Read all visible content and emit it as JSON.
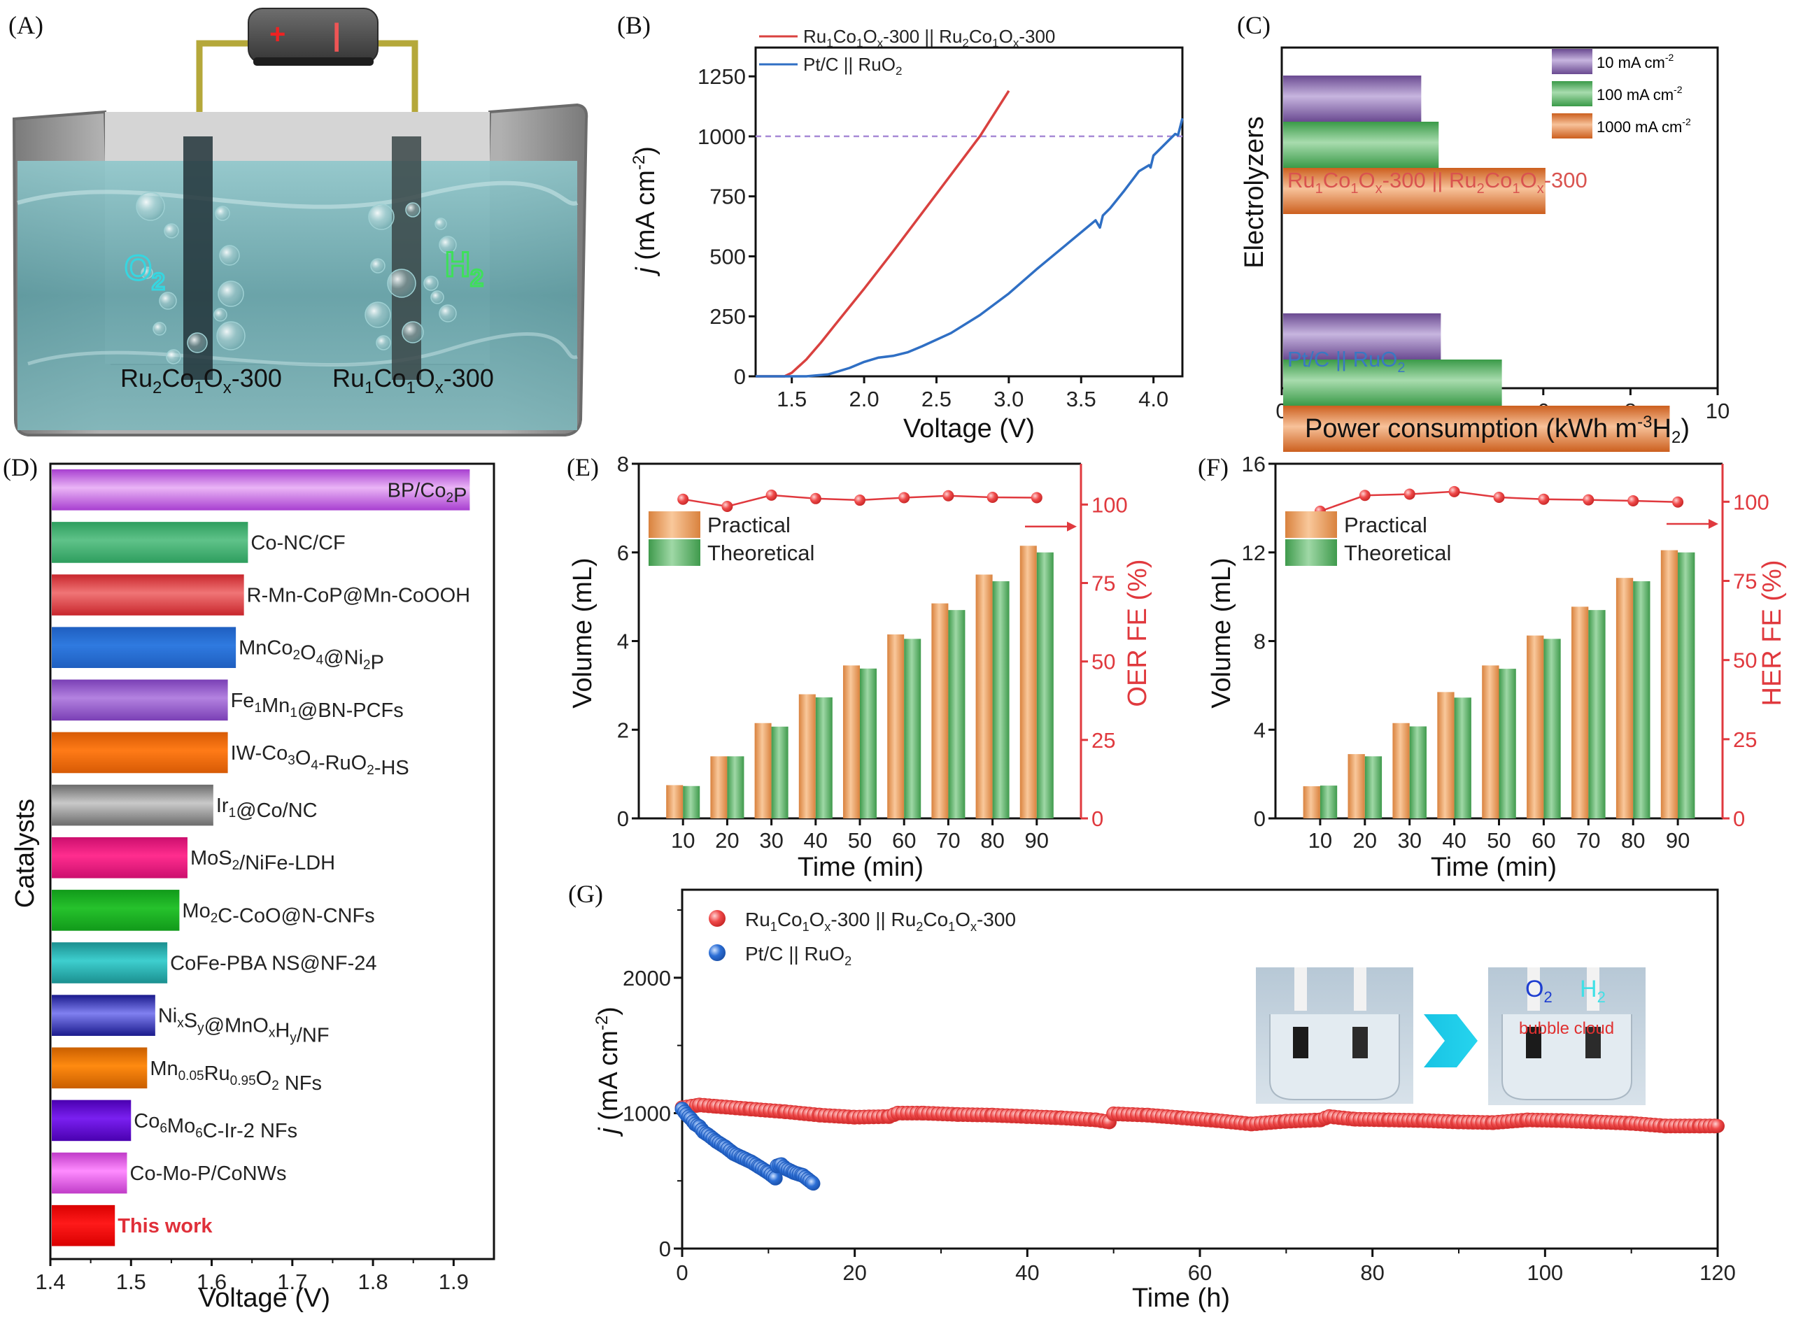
{
  "figure": {
    "panel_labels": [
      "(A)",
      "(B)",
      "(C)",
      "(D)",
      "(E)",
      "(F)",
      "(G)"
    ]
  },
  "panel_a": {
    "anode_label": {
      "base": "Ru",
      "s1": "2",
      "m1": "Co",
      "s2": "1",
      "m2": "O",
      "s3": "x",
      "tail": "-300"
    },
    "cathode_label": {
      "base": "Ru",
      "s1": "1",
      "m1": "Co",
      "s2": "1",
      "m2": "O",
      "s3": "x",
      "tail": "-300"
    },
    "gas_left": {
      "main": "O",
      "sub": "2"
    },
    "gas_right": {
      "main": "H",
      "sub": "2"
    },
    "battery_plus": "+",
    "battery_minus": "|",
    "colors": {
      "water": "#5fa7ad",
      "o2": "#36d6e0",
      "h2": "#3ee05a",
      "wire": "#b5a83a",
      "battery": "#4a4a4a"
    }
  },
  "chart_data": [
    {
      "id": "B",
      "type": "line",
      "xlabel": "Voltage (V)",
      "ylabel": "j (mA cm-2)",
      "xlim": [
        1.25,
        4.2
      ],
      "ylim": [
        0,
        1370
      ],
      "xticks": [
        1.5,
        2.0,
        2.5,
        3.0,
        3.5,
        4.0
      ],
      "xtick_labels": [
        "1.5",
        "2.0",
        "2.5",
        "3.0",
        "3.5",
        "4.0"
      ],
      "yticks": [
        0,
        250,
        500,
        750,
        1000,
        1250
      ],
      "ytick_labels": [
        "0",
        "250",
        "500",
        "750",
        "1000",
        "1250"
      ],
      "reference_line": {
        "y": 1000,
        "style": "dashed",
        "color": "#a78bd6"
      },
      "legend_position": "top-left",
      "series": [
        {
          "name": "Ru1Co1Ox-300 || Ru2Co1Ox-300",
          "legend": {
            "a": "Ru",
            "a1": "1",
            "b": "Co",
            "b1": "1",
            "c": "O",
            "c1": "x",
            "d": "-300 || Ru",
            "d1": "2",
            "e": "Co",
            "e1": "1",
            "f": "O",
            "f1": "x",
            "g": "-300"
          },
          "color": "#d9413f",
          "x": [
            1.25,
            1.45,
            1.5,
            1.6,
            1.7,
            1.8,
            1.9,
            2.0,
            2.2,
            2.4,
            2.6,
            2.8,
            3.0
          ],
          "y": [
            0,
            0,
            15,
            70,
            140,
            215,
            290,
            365,
            520,
            680,
            840,
            1000,
            1190
          ]
        },
        {
          "name": "Pt/C || RuO2",
          "legend": {
            "a": "Pt/C || RuO",
            "a1": "2"
          },
          "color": "#2f6fc4",
          "x": [
            1.25,
            1.6,
            1.75,
            1.9,
            2.0,
            2.1,
            2.2,
            2.3,
            2.4,
            2.6,
            2.8,
            3.0,
            3.2,
            3.4,
            3.6,
            3.63,
            3.65,
            3.7,
            3.8,
            3.9,
            3.97,
            3.98,
            4.0,
            4.1,
            4.15,
            4.17,
            4.2
          ],
          "y": [
            0,
            0,
            8,
            35,
            60,
            78,
            85,
            100,
            125,
            180,
            255,
            345,
            450,
            550,
            650,
            620,
            670,
            700,
            775,
            855,
            880,
            870,
            920,
            980,
            1010,
            1005,
            1075
          ]
        }
      ]
    },
    {
      "id": "C",
      "type": "bar",
      "orientation": "horizontal",
      "xlabel": "Power consumption (kWh m-3H2)",
      "xlabel_parts": {
        "a": "Power consumption (kWh m",
        "sup": "-3",
        "b": "H",
        "sub": "2",
        "c": ")"
      },
      "ylabel": "Electrolyzers",
      "xlim": [
        0,
        10
      ],
      "xticks": [
        0,
        2,
        4,
        6,
        8,
        10
      ],
      "xtick_labels": [
        "0",
        "2",
        "4",
        "6",
        "8",
        "10"
      ],
      "legend_position": "top-right",
      "categories": [
        "Ru1Co1Ox-300 || Ru2Co1Ox-300",
        "Pt/C || RuO2"
      ],
      "category_labels": [
        {
          "a": "Ru",
          "a1": "1",
          "b": "Co",
          "b1": "1",
          "c": "O",
          "c1": "x",
          "d": "-300 || Ru",
          "d1": "2",
          "e": "Co",
          "e1": "1",
          "f": "O",
          "f1": "x",
          "g": "-300",
          "color": "#d9534f"
        },
        {
          "a": "Pt/C || RuO",
          "a1": "2",
          "color": "#3a78c2"
        }
      ],
      "series": [
        {
          "name": "10 mA cm-2",
          "legend": {
            "a": "10 mA cm",
            "sup": "-2"
          },
          "color": "#6a4a91",
          "light": "#c7b5df",
          "values": [
            3.2,
            3.65
          ]
        },
        {
          "name": "100 mA cm-2",
          "legend": {
            "a": "100 mA cm",
            "sup": "-2"
          },
          "color": "#3a9a48",
          "light": "#a8dcae",
          "values": [
            3.6,
            5.05
          ]
        },
        {
          "name": "1000 mA cm-2",
          "legend": {
            "a": "1000 mA cm",
            "sup": "-2"
          },
          "color": "#cc5f1e",
          "light": "#f7c29a",
          "values": [
            6.05,
            8.9
          ]
        }
      ]
    },
    {
      "id": "D",
      "type": "bar",
      "orientation": "horizontal",
      "xlabel": "Voltage (V)",
      "ylabel": "Catalysts",
      "xlim": [
        1.4,
        1.95
      ],
      "xticks": [
        1.4,
        1.5,
        1.6,
        1.7,
        1.8,
        1.9
      ],
      "xtick_labels": [
        "1.4",
        "1.5",
        "1.6",
        "1.7",
        "1.8",
        "1.9"
      ],
      "categories": [
        {
          "parts": [
            [
              "BP/Co",
              ""
            ],
            [
              "2",
              "sub"
            ],
            [
              "P",
              ""
            ]
          ],
          "value": 1.92,
          "color": "#a83fd0",
          "light": "#eab4f6",
          "label_inside": true
        },
        {
          "parts": [
            [
              "Co-NC/CF",
              ""
            ]
          ],
          "value": 1.645,
          "color": "#2e9e5e",
          "light": "#5fc289"
        },
        {
          "parts": [
            [
              "R-Mn-CoP@Mn-CoOOH",
              ""
            ]
          ],
          "value": 1.64,
          "color": "#c8262c",
          "light": "#f07576"
        },
        {
          "parts": [
            [
              "MnCo",
              ""
            ],
            [
              "2",
              "sub"
            ],
            [
              "O",
              ""
            ],
            [
              "4",
              "sub"
            ],
            [
              "@Ni",
              ""
            ],
            [
              "2",
              "sub"
            ],
            [
              "P",
              ""
            ]
          ],
          "value": 1.63,
          "color": "#1f5fc0",
          "light": "#2f7ae0"
        },
        {
          "parts": [
            [
              "Fe",
              ""
            ],
            [
              "1",
              "sub"
            ],
            [
              "Mn",
              ""
            ],
            [
              "1",
              "sub"
            ],
            [
              "@BN-PCFs",
              ""
            ]
          ],
          "value": 1.62,
          "color": "#7a3fb5",
          "light": "#b382e0"
        },
        {
          "parts": [
            [
              "IW-Co",
              ""
            ],
            [
              "3",
              "sub"
            ],
            [
              "O",
              ""
            ],
            [
              "4",
              "sub"
            ],
            [
              "-RuO",
              ""
            ],
            [
              "2",
              "sub"
            ],
            [
              "-HS",
              ""
            ]
          ],
          "value": 1.62,
          "color": "#d75a05",
          "light": "#ff7b17"
        },
        {
          "parts": [
            [
              "Ir",
              ""
            ],
            [
              "1",
              "sub"
            ],
            [
              "@Co/NC",
              ""
            ]
          ],
          "value": 1.602,
          "color": "#6b6b6b",
          "light": "#c9c9c9"
        },
        {
          "parts": [
            [
              "MoS",
              ""
            ],
            [
              "2",
              "sub"
            ],
            [
              "/NiFe-LDH",
              ""
            ]
          ],
          "value": 1.57,
          "color": "#cc0f6e",
          "light": "#ff2d8e"
        },
        {
          "parts": [
            [
              "Mo",
              ""
            ],
            [
              "2",
              "sub"
            ],
            [
              "C-CoO@N-CNFs",
              ""
            ]
          ],
          "value": 1.56,
          "color": "#119a1a",
          "light": "#26c22c"
        },
        {
          "parts": [
            [
              "CoFe-PBA NS@NF-24",
              ""
            ]
          ],
          "value": 1.545,
          "color": "#1b8f8f",
          "light": "#3ecfcf"
        },
        {
          "parts": [
            [
              "Ni",
              ""
            ],
            [
              "x",
              "sub"
            ],
            [
              "S",
              ""
            ],
            [
              "y",
              "sub"
            ],
            [
              "@MnO",
              ""
            ],
            [
              "x",
              "sub"
            ],
            [
              "H",
              ""
            ],
            [
              "y",
              "sub"
            ],
            [
              "/NF",
              ""
            ]
          ],
          "value": 1.53,
          "color": "#1a1a8c",
          "light": "#8080f0"
        },
        {
          "parts": [
            [
              "Mn",
              ""
            ],
            [
              "0.05",
              "sub"
            ],
            [
              "Ru",
              ""
            ],
            [
              "0.95",
              "sub"
            ],
            [
              "O",
              ""
            ],
            [
              "2",
              "sub"
            ],
            [
              " NFs",
              ""
            ]
          ],
          "value": 1.52,
          "color": "#c95f00",
          "light": "#ff8a10"
        },
        {
          "parts": [
            [
              "Co",
              ""
            ],
            [
              "6",
              "sub"
            ],
            [
              "Mo",
              ""
            ],
            [
              "6",
              "sub"
            ],
            [
              "C-Ir-2 NFs",
              ""
            ]
          ],
          "value": 1.5,
          "color": "#4a00b0",
          "light": "#7a20f0"
        },
        {
          "parts": [
            [
              "Co-Mo-P/CoNWs",
              ""
            ]
          ],
          "value": 1.495,
          "color": "#c03cc8",
          "light": "#ff8cff"
        },
        {
          "parts": [
            [
              "This work",
              ""
            ]
          ],
          "value": 1.48,
          "color": "#d90000",
          "light": "#ff1a1a",
          "label_color": "#e0303a",
          "bold": true
        }
      ]
    },
    {
      "id": "E",
      "type": "bar",
      "xlabel": "Time (min)",
      "ylabel": "Volume (mL)",
      "ylabel_right": "OER FE (%)",
      "categories": [
        "10",
        "20",
        "30",
        "40",
        "50",
        "60",
        "70",
        "80",
        "90"
      ],
      "ylim": [
        0,
        8
      ],
      "yticks": [
        0,
        2,
        4,
        6,
        8
      ],
      "ylim_right": [
        0,
        113
      ],
      "yticks_right": [
        0,
        25,
        50,
        75,
        100
      ],
      "legend_position": "top-left",
      "series": [
        {
          "name": "Practical",
          "color": "#d9823e",
          "light": "#f9c89b",
          "values": [
            0.75,
            1.4,
            2.15,
            2.8,
            3.45,
            4.15,
            4.85,
            5.5,
            6.15
          ]
        },
        {
          "name": "Theoretical",
          "color": "#3f9a4c",
          "light": "#9fd8a6",
          "values": [
            0.73,
            1.4,
            2.07,
            2.73,
            3.38,
            4.05,
            4.7,
            5.35,
            6.0
          ]
        }
      ],
      "fe_series": {
        "name": "OER FE",
        "color": "#e0393e",
        "values": [
          101.7,
          99.4,
          103.0,
          101.9,
          101.4,
          102.2,
          102.8,
          102.3,
          102.2
        ],
        "axis": "right"
      }
    },
    {
      "id": "F",
      "type": "bar",
      "xlabel": "Time (min)",
      "ylabel": "Volume (mL)",
      "ylabel_right": "HER FE (%)",
      "categories": [
        "10",
        "20",
        "30",
        "40",
        "50",
        "60",
        "70",
        "80",
        "90"
      ],
      "ylim": [
        0,
        16
      ],
      "yticks": [
        0,
        4,
        8,
        12,
        16
      ],
      "ylim_right": [
        0,
        112
      ],
      "yticks_right": [
        0,
        25,
        50,
        75,
        100
      ],
      "legend_position": "top-left",
      "series": [
        {
          "name": "Practical",
          "color": "#d9823e",
          "light": "#f9c89b",
          "values": [
            1.45,
            2.9,
            4.3,
            5.7,
            6.9,
            8.25,
            9.55,
            10.85,
            12.1
          ]
        },
        {
          "name": "Theoretical",
          "color": "#3f9a4c",
          "light": "#9fd8a6",
          "values": [
            1.48,
            2.8,
            4.15,
            5.45,
            6.75,
            8.1,
            9.4,
            10.7,
            12.0
          ]
        }
      ],
      "fe_series": {
        "name": "HER FE",
        "color": "#e0393e",
        "values": [
          97.0,
          102.0,
          102.4,
          103.2,
          101.4,
          100.8,
          100.6,
          100.3,
          99.9
        ],
        "axis": "right"
      }
    },
    {
      "id": "G",
      "type": "scatter",
      "xlabel": "Time (h)",
      "ylabel": "j (mA cm-2)",
      "xlim": [
        0,
        120
      ],
      "xticks": [
        0,
        20,
        40,
        60,
        80,
        100,
        120
      ],
      "xtick_labels": [
        "0",
        "20",
        "40",
        "60",
        "80",
        "100",
        "120"
      ],
      "ylim": [
        0,
        2650
      ],
      "yticks": [
        0,
        1000,
        2000
      ],
      "ytick_labels": [
        "0",
        "1000",
        "2000"
      ],
      "legend_position": "top-left",
      "series": [
        {
          "name": "Ru1Co1Ox-300 || Ru2Co1Ox-300",
          "legend": {
            "a": "Ru",
            "a1": "1",
            "b": "Co",
            "b1": "1",
            "c": "O",
            "c1": "x",
            "d": "-300 || Ru",
            "d1": "2",
            "e": "Co",
            "e1": "1",
            "f": "O",
            "f1": "x",
            "g": "-300"
          },
          "color": "#e8393c",
          "x": [
            0,
            2,
            4,
            8,
            12,
            16,
            20,
            24,
            25,
            28,
            32,
            36,
            40,
            44,
            48,
            49.5,
            50,
            54,
            58,
            62,
            66,
            70,
            74,
            75,
            78,
            82,
            86,
            90,
            94,
            98,
            102,
            106,
            110,
            114,
            118,
            120
          ],
          "y": [
            1040,
            1060,
            1050,
            1030,
            1010,
            985,
            970,
            975,
            1000,
            1000,
            990,
            985,
            975,
            965,
            950,
            935,
            995,
            985,
            965,
            945,
            920,
            940,
            950,
            975,
            955,
            950,
            945,
            935,
            930,
            950,
            945,
            935,
            925,
            905,
            905,
            905
          ]
        },
        {
          "name": "Pt/C || RuO2",
          "legend": {
            "a": "Pt/C || RuO",
            "a1": "2"
          },
          "color": "#2464c8",
          "x": [
            0,
            0.5,
            1,
            1.5,
            2,
            2.5,
            3,
            4,
            5,
            6,
            7,
            8,
            9,
            10,
            10.8,
            11,
            11.5,
            12,
            13,
            14,
            14.8,
            15.2
          ],
          "y": [
            1030,
            990,
            960,
            920,
            900,
            860,
            840,
            790,
            750,
            700,
            670,
            640,
            600,
            560,
            520,
            610,
            620,
            590,
            560,
            540,
            500,
            480
          ]
        }
      ],
      "inset": {
        "arrow_color": "#18c4e4",
        "label": "bubble cloud",
        "label_color": "#e03030",
        "gas_o2": {
          "main": "O",
          "sub": "2",
          "color": "#1f3fd0"
        },
        "gas_h2": {
          "main": "H",
          "sub": "2",
          "color": "#3fe0e6"
        }
      }
    }
  ]
}
